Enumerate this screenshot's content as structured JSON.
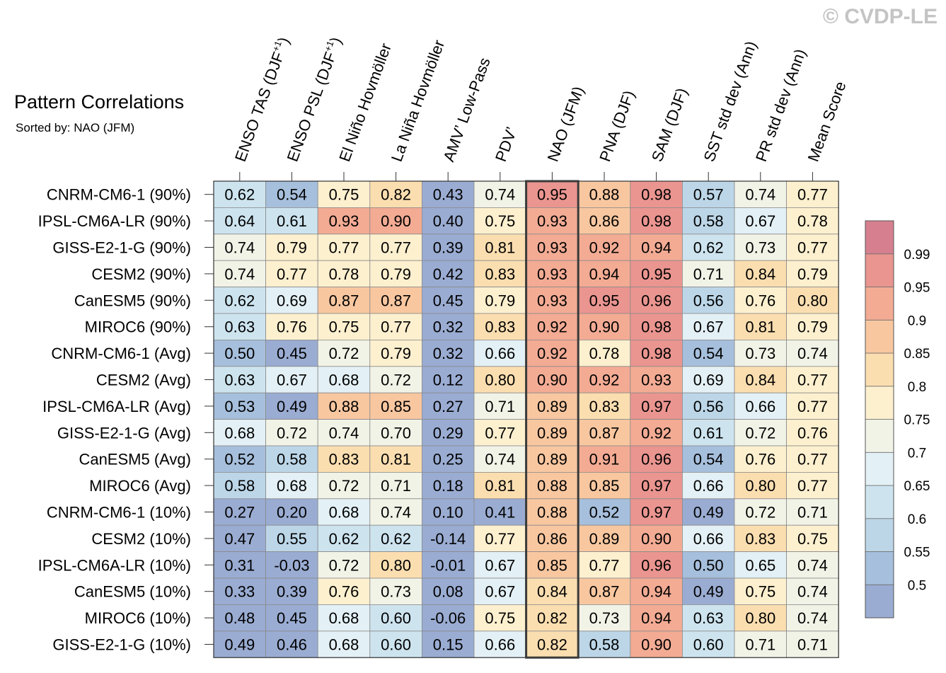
{
  "watermark": "© CVDP-LE",
  "chart_data": {
    "type": "heatmap",
    "title": "Pattern Correlations",
    "subtitle": "Sorted by: NAO (JFM)",
    "highlight_column": "NAO (JFM)",
    "columns": [
      {
        "pre": "ENSO TAS (DJF",
        "sup": "+1",
        "post": ")"
      },
      {
        "pre": "ENSO PSL (DJF",
        "sup": "+1",
        "post": ")"
      },
      {
        "pre": "El Niño Hovmöller"
      },
      {
        "pre": "La Niña Hovmöller"
      },
      {
        "pre": "AMV’ Low-Pass"
      },
      {
        "pre": "PDV’"
      },
      {
        "pre": "NAO (JFM)"
      },
      {
        "pre": "PNA (DJF)"
      },
      {
        "pre": "SAM (DJF)"
      },
      {
        "pre": "SST std dev (Ann)"
      },
      {
        "pre": "PR std dev (Ann)"
      },
      {
        "pre": "Mean Score"
      }
    ],
    "rows": [
      "CNRM-CM6-1 (90%)",
      "IPSL-CM6A-LR (90%)",
      "GISS-E2-1-G (90%)",
      "CESM2 (90%)",
      "CanESM5 (90%)",
      "MIROC6 (90%)",
      "CNRM-CM6-1 (Avg)",
      "CESM2 (Avg)",
      "IPSL-CM6A-LR (Avg)",
      "GISS-E2-1-G (Avg)",
      "CanESM5 (Avg)",
      "MIROC6 (Avg)",
      "CNRM-CM6-1 (10%)",
      "CESM2 (10%)",
      "IPSL-CM6A-LR (10%)",
      "CanESM5 (10%)",
      "MIROC6 (10%)",
      "GISS-E2-1-G (10%)"
    ],
    "values": [
      [
        "0.62",
        "0.54",
        "0.75",
        "0.82",
        "0.43",
        "0.74",
        "0.95",
        "0.88",
        "0.98",
        "0.57",
        "0.74",
        "0.77"
      ],
      [
        "0.64",
        "0.61",
        "0.93",
        "0.90",
        "0.40",
        "0.75",
        "0.93",
        "0.86",
        "0.98",
        "0.58",
        "0.67",
        "0.78"
      ],
      [
        "0.74",
        "0.79",
        "0.77",
        "0.77",
        "0.39",
        "0.81",
        "0.93",
        "0.92",
        "0.94",
        "0.62",
        "0.73",
        "0.77"
      ],
      [
        "0.74",
        "0.77",
        "0.78",
        "0.79",
        "0.42",
        "0.83",
        "0.93",
        "0.94",
        "0.95",
        "0.71",
        "0.84",
        "0.79"
      ],
      [
        "0.62",
        "0.69",
        "0.87",
        "0.87",
        "0.45",
        "0.79",
        "0.93",
        "0.95",
        "0.96",
        "0.56",
        "0.76",
        "0.80"
      ],
      [
        "0.63",
        "0.76",
        "0.75",
        "0.77",
        "0.32",
        "0.83",
        "0.92",
        "0.90",
        "0.98",
        "0.67",
        "0.81",
        "0.79"
      ],
      [
        "0.50",
        "0.45",
        "0.72",
        "0.79",
        "0.32",
        "0.66",
        "0.92",
        "0.78",
        "0.98",
        "0.54",
        "0.73",
        "0.74"
      ],
      [
        "0.63",
        "0.67",
        "0.68",
        "0.72",
        "0.12",
        "0.80",
        "0.90",
        "0.92",
        "0.93",
        "0.69",
        "0.84",
        "0.77"
      ],
      [
        "0.53",
        "0.49",
        "0.88",
        "0.85",
        "0.27",
        "0.71",
        "0.89",
        "0.83",
        "0.97",
        "0.56",
        "0.66",
        "0.77"
      ],
      [
        "0.68",
        "0.72",
        "0.74",
        "0.70",
        "0.29",
        "0.77",
        "0.89",
        "0.87",
        "0.92",
        "0.61",
        "0.72",
        "0.76"
      ],
      [
        "0.52",
        "0.58",
        "0.83",
        "0.81",
        "0.25",
        "0.74",
        "0.89",
        "0.91",
        "0.96",
        "0.54",
        "0.76",
        "0.77"
      ],
      [
        "0.58",
        "0.68",
        "0.72",
        "0.71",
        "0.18",
        "0.81",
        "0.88",
        "0.85",
        "0.97",
        "0.66",
        "0.80",
        "0.77"
      ],
      [
        "0.27",
        "0.20",
        "0.68",
        "0.74",
        "0.10",
        "0.41",
        "0.88",
        "0.52",
        "0.97",
        "0.49",
        "0.72",
        "0.71"
      ],
      [
        "0.47",
        "0.55",
        "0.62",
        "0.62",
        "-0.14",
        "0.77",
        "0.86",
        "0.89",
        "0.90",
        "0.66",
        "0.83",
        "0.75"
      ],
      [
        "0.31",
        "-0.03",
        "0.72",
        "0.80",
        "-0.01",
        "0.67",
        "0.85",
        "0.77",
        "0.96",
        "0.50",
        "0.65",
        "0.74"
      ],
      [
        "0.33",
        "0.39",
        "0.76",
        "0.73",
        "0.08",
        "0.67",
        "0.84",
        "0.87",
        "0.94",
        "0.49",
        "0.75",
        "0.74"
      ],
      [
        "0.48",
        "0.45",
        "0.68",
        "0.60",
        "-0.06",
        "0.75",
        "0.82",
        "0.73",
        "0.94",
        "0.63",
        "0.80",
        "0.74"
      ],
      [
        "0.49",
        "0.46",
        "0.68",
        "0.60",
        "0.15",
        "0.66",
        "0.82",
        "0.58",
        "0.90",
        "0.60",
        "0.71",
        "0.71"
      ]
    ],
    "colorbar": {
      "levels": [
        "0.5",
        "0.55",
        "0.6",
        "0.65",
        "0.7",
        "0.75",
        "0.8",
        "0.85",
        "0.9",
        "0.95",
        "0.99"
      ],
      "colors": [
        "#9aacd2",
        "#a6bfdc",
        "#bcd6e8",
        "#cde4ef",
        "#e3f0f5",
        "#f2f3e7",
        "#fdf0cf",
        "#fbdeb0",
        "#f8c7a0",
        "#f3ab94",
        "#ea9590",
        "#d6808f"
      ]
    }
  }
}
